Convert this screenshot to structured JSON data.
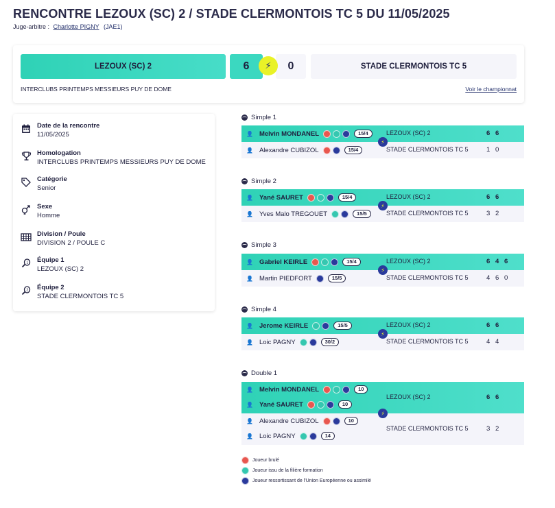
{
  "header": {
    "title": "RENCONTRE LEZOUX (SC) 2 / STADE CLERMONTOIS TC 5 DU 11/05/2025",
    "referee_label": "Juge-arbitre :",
    "referee_name": "Charlotte PIGNY",
    "referee_code": "(JAE1)"
  },
  "scorecard": {
    "home_team": "LEZOUX (SC) 2",
    "home_score": "6",
    "away_score": "0",
    "away_team": "STADE CLERMONTOIS TC 5",
    "championship": "INTERCLUBS PRINTEMPS MESSIEURS PUY DE DOME",
    "championship_link": "Voir le championnat",
    "bolt_icon": "⚡"
  },
  "info": [
    {
      "key": "Date de la rencontre",
      "value": "11/05/2025",
      "icon": "calendar-icon"
    },
    {
      "key": "Homologation",
      "value": "INTERCLUBS PRINTEMPS MESSIEURS PUY DE DOME",
      "icon": "trophy-icon"
    },
    {
      "key": "Catégorie",
      "value": "Senior",
      "icon": "tag-icon"
    },
    {
      "key": "Sexe",
      "value": "Homme",
      "icon": "gender-icon"
    },
    {
      "key": "Division / Poule",
      "value": "DIVISION 2 / POULE C",
      "icon": "grid-icon"
    },
    {
      "key": "Équipe 1",
      "value": "LEZOUX (SC) 2",
      "icon": "racket-1-icon"
    },
    {
      "key": "Équipe 2",
      "value": "STADE CLERMONTOIS TC 5",
      "icon": "racket-2-icon"
    }
  ],
  "matches": [
    {
      "label": "Simple 1",
      "winner": {
        "players": [
          {
            "name": "Melvin MONDANEL",
            "badges": [
              "red",
              "teal",
              "blue"
            ],
            "ranking": "15/4"
          }
        ],
        "team": "LEZOUX (SC) 2",
        "sets": [
          "6",
          "6"
        ]
      },
      "loser": {
        "players": [
          {
            "name": "Alexandre CUBIZOL",
            "badges": [
              "red",
              "blue"
            ],
            "ranking": "15/4"
          }
        ],
        "team": "STADE CLERMONTOIS TC 5",
        "sets": [
          "1",
          "0"
        ]
      }
    },
    {
      "label": "Simple 2",
      "winner": {
        "players": [
          {
            "name": "Yané SAURET",
            "badges": [
              "red",
              "teal",
              "blue"
            ],
            "ranking": "15/4"
          }
        ],
        "team": "LEZOUX (SC) 2",
        "sets": [
          "6",
          "6"
        ]
      },
      "loser": {
        "players": [
          {
            "name": "Yves Malo TREGOUET",
            "badges": [
              "teal",
              "blue"
            ],
            "ranking": "15/5"
          }
        ],
        "team": "STADE CLERMONTOIS TC 5",
        "sets": [
          "3",
          "2"
        ]
      }
    },
    {
      "label": "Simple 3",
      "winner": {
        "players": [
          {
            "name": "Gabriel KEIRLE",
            "badges": [
              "red",
              "teal",
              "blue"
            ],
            "ranking": "15/4"
          }
        ],
        "team": "LEZOUX (SC) 2",
        "sets": [
          "6",
          "4",
          "6"
        ]
      },
      "loser": {
        "players": [
          {
            "name": "Martin PIEDFORT",
            "badges": [
              "blue"
            ],
            "ranking": "15/5"
          }
        ],
        "team": "STADE CLERMONTOIS TC 5",
        "sets": [
          "4",
          "6",
          "0"
        ]
      }
    },
    {
      "label": "Simple 4",
      "winner": {
        "players": [
          {
            "name": "Jerome KEIRLE",
            "badges": [
              "teal",
              "blue"
            ],
            "ranking": "15/5"
          }
        ],
        "team": "LEZOUX (SC) 2",
        "sets": [
          "6",
          "6"
        ]
      },
      "loser": {
        "players": [
          {
            "name": "Loic PAGNY",
            "badges": [
              "teal",
              "blue"
            ],
            "ranking": "30/2"
          }
        ],
        "team": "STADE CLERMONTOIS TC 5",
        "sets": [
          "4",
          "4"
        ]
      }
    },
    {
      "label": "Double 1",
      "winner": {
        "players": [
          {
            "name": "Melvin MONDANEL",
            "badges": [
              "red",
              "teal",
              "blue"
            ],
            "ranking": "10"
          },
          {
            "name": "Yané SAURET",
            "badges": [
              "red",
              "teal",
              "blue"
            ],
            "ranking": "10"
          }
        ],
        "team": "LEZOUX (SC) 2",
        "sets": [
          "6",
          "6"
        ]
      },
      "loser": {
        "players": [
          {
            "name": "Alexandre CUBIZOL",
            "badges": [
              "red",
              "blue"
            ],
            "ranking": "10"
          },
          {
            "name": "Loic PAGNY",
            "badges": [
              "teal",
              "blue"
            ],
            "ranking": "14"
          }
        ],
        "team": "STADE CLERMONTOIS TC 5",
        "sets": [
          "3",
          "2"
        ]
      }
    }
  ],
  "legend": [
    {
      "badge": "red",
      "text": "Joueur brulé"
    },
    {
      "badge": "teal",
      "text": "Joueur issu de la filière formation"
    },
    {
      "badge": "blue",
      "text": "Joueur ressortissant de l'Union Européenne ou assimilé"
    }
  ],
  "colors": {
    "accent": "#2fd2b6",
    "navy": "#23306b",
    "bolt": "#e9f227"
  }
}
